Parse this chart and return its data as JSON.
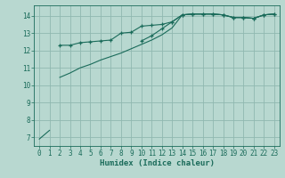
{
  "background_color": "#b8d8d0",
  "grid_color": "#90b8b0",
  "line_color": "#1a6b5a",
  "xlabel": "Humidex (Indice chaleur)",
  "xlabel_fontsize": 6.5,
  "tick_fontsize": 5.5,
  "ylim": [
    6.5,
    14.6
  ],
  "xlim": [
    -0.5,
    23.5
  ],
  "yticks": [
    7,
    8,
    9,
    10,
    11,
    12,
    13,
    14
  ],
  "xticks": [
    0,
    1,
    2,
    3,
    4,
    5,
    6,
    7,
    8,
    9,
    10,
    11,
    12,
    13,
    14,
    15,
    16,
    17,
    18,
    19,
    20,
    21,
    22,
    23
  ],
  "series": [
    {
      "x": [
        0,
        1
      ],
      "y": [
        6.9,
        7.4
      ],
      "has_markers": false
    },
    {
      "x": [
        2,
        3,
        4,
        5,
        6,
        7,
        8,
        9,
        10,
        11,
        12,
        13,
        14,
        15,
        16,
        17,
        18,
        19,
        20,
        21,
        22,
        23
      ],
      "y": [
        10.45,
        10.7,
        11.0,
        11.2,
        11.45,
        11.65,
        11.85,
        12.1,
        12.35,
        12.6,
        12.9,
        13.3,
        14.05,
        14.1,
        14.1,
        14.1,
        14.05,
        13.9,
        13.9,
        13.85,
        14.05,
        14.1
      ],
      "has_markers": false
    },
    {
      "x": [
        2,
        3,
        4,
        5,
        6,
        7,
        8,
        9,
        10,
        11,
        12,
        13,
        14,
        15,
        16,
        17,
        18,
        19,
        20,
        21,
        22,
        23
      ],
      "y": [
        12.3,
        12.3,
        12.45,
        12.5,
        12.55,
        12.6,
        13.0,
        13.05,
        13.4,
        13.45,
        13.5,
        13.65,
        14.05,
        14.1,
        14.1,
        14.1,
        14.05,
        13.9,
        13.9,
        13.85,
        14.05,
        14.1
      ],
      "has_markers": true
    },
    {
      "x": [
        10,
        11,
        12,
        13,
        14,
        15,
        16,
        17,
        18,
        19,
        20,
        21,
        22,
        23
      ],
      "y": [
        12.55,
        12.85,
        13.25,
        13.65,
        14.05,
        14.1,
        14.1,
        14.1,
        14.05,
        13.9,
        13.9,
        13.85,
        14.05,
        14.1
      ],
      "has_markers": true
    }
  ],
  "figsize": [
    3.2,
    2.0
  ],
  "dpi": 100
}
